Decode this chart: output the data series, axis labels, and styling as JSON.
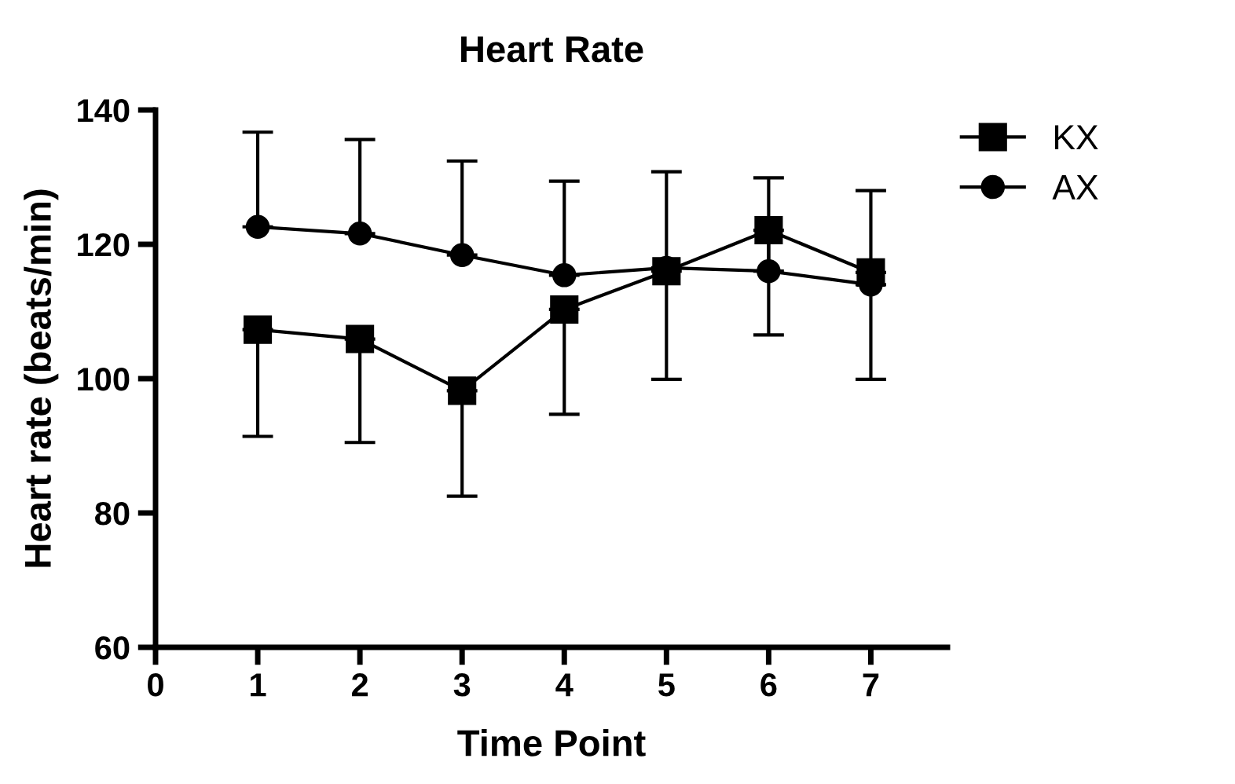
{
  "chart_data": {
    "type": "line",
    "title": "Heart Rate",
    "xlabel": "Time Point",
    "ylabel": "Heart rate (beats/min)",
    "x": [
      1,
      2,
      3,
      4,
      5,
      6,
      7
    ],
    "series": [
      {
        "name": "KX",
        "color": "#000000",
        "marker": "square",
        "values": [
          107.3,
          105.9,
          98.2,
          110.3,
          116.0,
          122.1,
          115.8
        ],
        "errors": [
          [
            91.4,
            107.3
          ],
          [
            90.5,
            105.9
          ],
          [
            82.5,
            98.2
          ],
          [
            94.7,
            110.3
          ],
          [
            99.9,
            116.0
          ],
          [
            106.5,
            122.1
          ],
          [
            99.9,
            115.8
          ]
        ]
      },
      {
        "name": "AX",
        "color": "#000000",
        "marker": "circle",
        "values": [
          122.6,
          121.6,
          118.4,
          115.4,
          116.5,
          116.0,
          114.0
        ],
        "errors": [
          [
            122.6,
            136.7
          ],
          [
            121.6,
            135.6
          ],
          [
            118.4,
            132.4
          ],
          [
            115.4,
            129.4
          ],
          [
            116.5,
            130.8
          ],
          [
            116.0,
            129.9
          ],
          [
            114.0,
            128.0
          ]
        ]
      }
    ],
    "xlim": [
      0,
      7.75
    ],
    "xticks": [
      0,
      1,
      2,
      3,
      4,
      5,
      6,
      7
    ],
    "ylim": [
      60,
      140
    ],
    "yticks": [
      60,
      80,
      100,
      120,
      140
    ],
    "grid": false,
    "legend": "top right",
    "line_style": "solid"
  }
}
